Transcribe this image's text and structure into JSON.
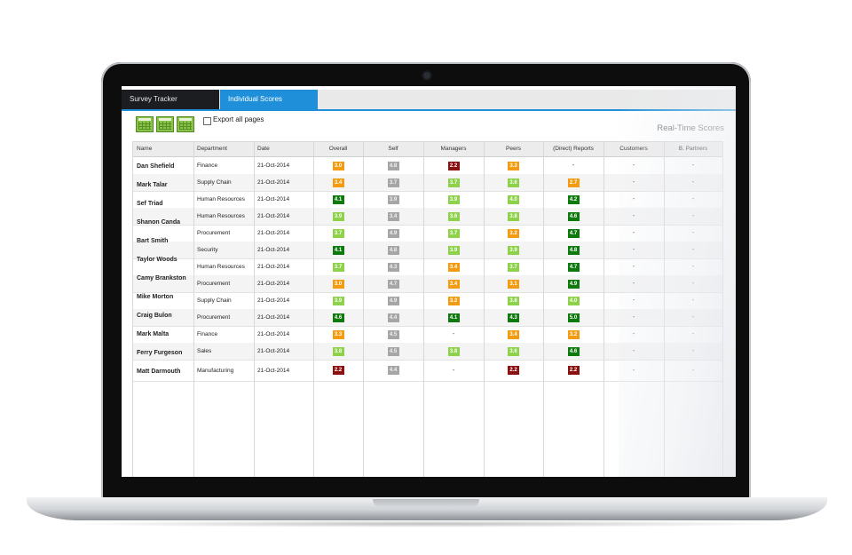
{
  "tabs": [
    {
      "label": "Survey Tracker",
      "active": false
    },
    {
      "label": "Individual Scores",
      "active": true
    }
  ],
  "toolbar": {
    "export_buttons": [
      "excel-icon",
      "excel-icon",
      "excel-icon"
    ],
    "export_all_label": "Export all pages",
    "export_all_checked": false,
    "title": "Real-Time Scores"
  },
  "colors": {
    "accent": "#1e8fd8",
    "score_dark_green": "#0e7a0e",
    "score_light_green": "#8ed14a",
    "score_orange": "#f39c12",
    "score_dark_red": "#8b1010",
    "score_grey": "#a6a6a6"
  },
  "table": {
    "columns": [
      "Name",
      "Department",
      "Date",
      "Overall",
      "Self",
      "Managers",
      "Peers",
      "(Direct) Reports",
      "Customers",
      "B. Partners"
    ],
    "rows": [
      {
        "name": "Dan Shefield",
        "department": "Finance",
        "date": "21-Oct-2014",
        "scores": [
          [
            "3.0",
            "orange"
          ],
          [
            "4.8",
            "grey"
          ],
          [
            "2.2",
            "red"
          ],
          [
            "3.3",
            "orange"
          ],
          [
            "-",
            "none"
          ],
          [
            "-",
            "none"
          ],
          [
            "-",
            "none"
          ]
        ]
      },
      {
        "name": "Mark Talar",
        "department": "Supply Chain",
        "date": "21-Oct-2014",
        "scores": [
          [
            "3.4",
            "orange"
          ],
          [
            "3.7",
            "grey"
          ],
          [
            "3.7",
            "light"
          ],
          [
            "3.6",
            "light"
          ],
          [
            "2.7",
            "orange"
          ],
          [
            "-",
            "none"
          ],
          [
            "-",
            "none"
          ]
        ]
      },
      {
        "name": "Sef Triad",
        "department": "Human Resources",
        "date": "21-Oct-2014",
        "scores": [
          [
            "4.1",
            "dark"
          ],
          [
            "3.9",
            "grey"
          ],
          [
            "3.9",
            "light"
          ],
          [
            "4.0",
            "light"
          ],
          [
            "4.2",
            "dark"
          ],
          [
            "-",
            "none"
          ],
          [
            "-",
            "none"
          ]
        ]
      },
      {
        "name": "Shanon Canda",
        "department": "Human Resources",
        "date": "21-Oct-2014",
        "scores": [
          [
            "3.9",
            "light"
          ],
          [
            "3.4",
            "grey"
          ],
          [
            "3.6",
            "light"
          ],
          [
            "3.8",
            "light"
          ],
          [
            "4.6",
            "dark"
          ],
          [
            "-",
            "none"
          ],
          [
            "-",
            "none"
          ]
        ]
      },
      {
        "name": "Bart Smith",
        "department": "Procurement",
        "date": "21-Oct-2014",
        "scores": [
          [
            "3.7",
            "light"
          ],
          [
            "4.9",
            "grey"
          ],
          [
            "3.7",
            "light"
          ],
          [
            "3.2",
            "orange"
          ],
          [
            "4.7",
            "dark"
          ],
          [
            "-",
            "none"
          ],
          [
            "-",
            "none"
          ]
        ]
      },
      {
        "name": "Taylor Woods",
        "department": "Security",
        "date": "21-Oct-2014",
        "scores": [
          [
            "4.1",
            "dark"
          ],
          [
            "4.8",
            "grey"
          ],
          [
            "3.9",
            "light"
          ],
          [
            "3.9",
            "light"
          ],
          [
            "4.8",
            "dark"
          ],
          [
            "-",
            "none"
          ],
          [
            "-",
            "none"
          ]
        ]
      },
      {
        "name": "Camy Brankston",
        "department": "Human Resources",
        "date": "21-Oct-2014",
        "scores": [
          [
            "3.7",
            "light"
          ],
          [
            "4.3",
            "grey"
          ],
          [
            "3.4",
            "orange"
          ],
          [
            "3.7",
            "light"
          ],
          [
            "4.7",
            "dark"
          ],
          [
            "-",
            "none"
          ],
          [
            "-",
            "none"
          ]
        ]
      },
      {
        "name": "Mike Morton",
        "department": "Procurement",
        "date": "21-Oct-2014",
        "scores": [
          [
            "3.0",
            "orange"
          ],
          [
            "4.7",
            "grey"
          ],
          [
            "3.4",
            "orange"
          ],
          [
            "3.1",
            "orange"
          ],
          [
            "4.9",
            "dark"
          ],
          [
            "-",
            "none"
          ],
          [
            "-",
            "none"
          ]
        ]
      },
      {
        "name": "Craig Bulon",
        "department": "Supply Chain",
        "date": "21-Oct-2014",
        "scores": [
          [
            "3.9",
            "light"
          ],
          [
            "4.9",
            "grey"
          ],
          [
            "3.2",
            "orange"
          ],
          [
            "3.8",
            "light"
          ],
          [
            "4.0",
            "light"
          ],
          [
            "-",
            "none"
          ],
          [
            "-",
            "none"
          ]
        ]
      },
      {
        "name": "Mark Malta",
        "department": "Procurement",
        "date": "21-Oct-2014",
        "scores": [
          [
            "4.6",
            "dark"
          ],
          [
            "4.4",
            "grey"
          ],
          [
            "4.1",
            "dark"
          ],
          [
            "4.3",
            "dark"
          ],
          [
            "5.0",
            "dark"
          ],
          [
            "-",
            "none"
          ],
          [
            "-",
            "none"
          ]
        ]
      },
      {
        "name": "Ferry Furgeson",
        "department": "Finance",
        "date": "21-Oct-2014",
        "scores": [
          [
            "3.3",
            "orange"
          ],
          [
            "4.5",
            "grey"
          ],
          [
            "-",
            "none"
          ],
          [
            "3.4",
            "orange"
          ],
          [
            "3.2",
            "orange"
          ],
          [
            "-",
            "none"
          ],
          [
            "-",
            "none"
          ]
        ]
      },
      {
        "name": "Matt Darmouth",
        "department": "Sales",
        "date": "21-Oct-2014",
        "scores": [
          [
            "3.8",
            "light"
          ],
          [
            "4.5",
            "grey"
          ],
          [
            "3.8",
            "light"
          ],
          [
            "3.6",
            "light"
          ],
          [
            "4.6",
            "dark"
          ],
          [
            "-",
            "none"
          ],
          [
            "-",
            "none"
          ]
        ]
      },
      {
        "name": "",
        "department": "Manufacturing",
        "date": "21-Oct-2014",
        "scores": [
          [
            "2.2",
            "red"
          ],
          [
            "4.4",
            "grey"
          ],
          [
            "-",
            "none"
          ],
          [
            "2.2",
            "red"
          ],
          [
            "2.2",
            "red"
          ],
          [
            "-",
            "none"
          ],
          [
            "-",
            "none"
          ]
        ]
      }
    ]
  }
}
